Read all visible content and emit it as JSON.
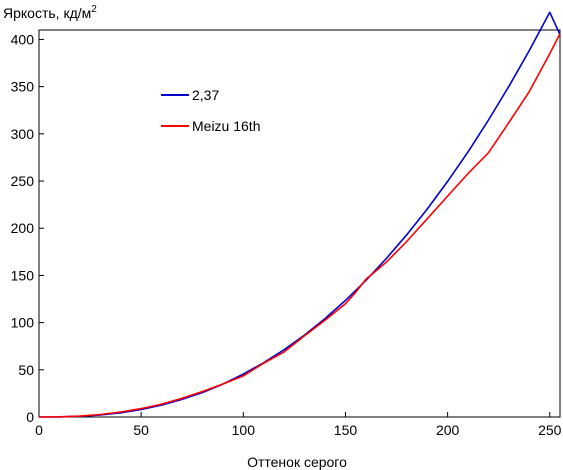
{
  "chart_data": {
    "type": "line",
    "title": "",
    "ylabel": "Яркость, кд/м",
    "ylabel_sup": "2",
    "xlabel": "Оттенок серого",
    "xlim": [
      0,
      255
    ],
    "ylim": [
      0,
      410
    ],
    "xticks": [
      0,
      50,
      100,
      150,
      200,
      250
    ],
    "yticks": [
      0,
      50,
      100,
      150,
      200,
      250,
      300,
      350,
      400
    ],
    "grid": false,
    "legend_position": "upper-left-inside",
    "series": [
      {
        "name": "2,37",
        "color": "#0000cc",
        "x": [
          0,
          10,
          20,
          30,
          40,
          50,
          60,
          70,
          80,
          90,
          100,
          110,
          120,
          130,
          140,
          150,
          160,
          170,
          180,
          190,
          200,
          210,
          220,
          230,
          240,
          250,
          255
        ],
        "y": [
          0,
          0.1,
          0.7,
          2.1,
          4.5,
          7.9,
          12.6,
          18.6,
          26.0,
          34.9,
          45.4,
          57.5,
          71.3,
          86.9,
          104.3,
          123.5,
          144.7,
          167.9,
          193.1,
          220.3,
          249.6,
          281.0,
          314.6,
          350.4,
          388.4,
          428.7,
          405
        ]
      },
      {
        "name": "Meizu 16th",
        "color": "#ff0000",
        "x": [
          0,
          10,
          20,
          30,
          40,
          50,
          60,
          70,
          80,
          90,
          100,
          110,
          120,
          130,
          140,
          150,
          155,
          160,
          165,
          170,
          180,
          190,
          200,
          210,
          220,
          230,
          240,
          250,
          255
        ],
        "y": [
          0,
          0.2,
          1.0,
          2.7,
          5.3,
          8.9,
          13.7,
          19.8,
          27.0,
          35.0,
          43.5,
          57.0,
          69.0,
          86.0,
          102.5,
          120.0,
          132.0,
          146.0,
          155.0,
          164.0,
          186.0,
          210.0,
          234.0,
          258.0,
          280.0,
          312.0,
          345.0,
          385.0,
          406.0
        ]
      }
    ]
  }
}
